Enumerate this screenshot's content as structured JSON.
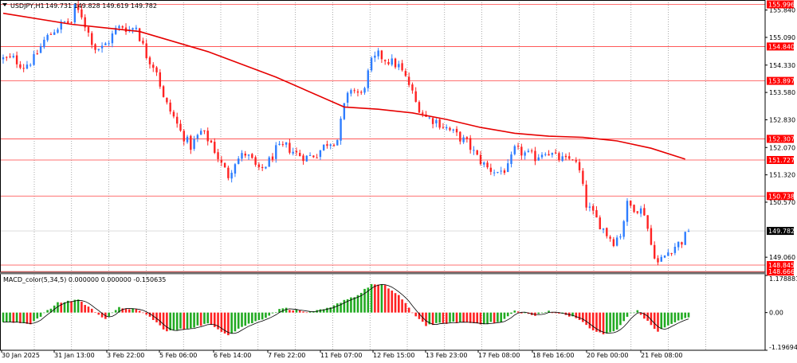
{
  "colors": {
    "background": "#ffffff",
    "axis": "#000000",
    "grid": "#000000",
    "bull": "#2e7dff",
    "bear": "#ff2222",
    "ma": "#e60000",
    "level_line": "#ff4040",
    "level_label_bg": "#ff0000",
    "level_label_text": "#ffffff",
    "price_label_bg": "#000000",
    "price_label_text": "#ffffff",
    "macd_pos_rising": "#22aa22",
    "macd_pos_falling": "#ff2222",
    "macd_signal": "#000000"
  },
  "main": {
    "title": "USDJPY,H1",
    "title_values": "149.731 149.828 149.619 149.782",
    "title_icon": "triangle-down-icon"
  },
  "chart_data": [
    {
      "type": "candlestick",
      "symbol": "USDJPY",
      "timeframe": "H1",
      "ylim": [
        148.67,
        156.05
      ],
      "y_ticks": [
        "155.840",
        "155.090",
        "154.330",
        "153.580",
        "152.830",
        "152.070",
        "151.320",
        "150.570",
        "149.060"
      ],
      "x_ticks": [
        "30 Jan 2025",
        "31 Jan 13:00",
        "3 Feb 22:00",
        "5 Feb 06:00",
        "6 Feb 14:00",
        "7 Feb 22:00",
        "11 Feb 07:00",
        "12 Feb 15:00",
        "13 Feb 23:00",
        "17 Feb 08:00",
        "18 Feb 16:00",
        "20 Feb 00:00",
        "21 Feb 08:00"
      ],
      "close_path": [
        [
          0,
          154.5
        ],
        [
          3,
          154.5
        ],
        [
          6,
          154.3
        ],
        [
          9,
          154.5
        ],
        [
          12,
          155.0
        ],
        [
          15,
          155.3
        ],
        [
          18,
          155.5
        ],
        [
          20,
          155.5
        ],
        [
          21,
          155.9
        ],
        [
          23,
          155.7
        ],
        [
          25,
          155.2
        ],
        [
          27,
          154.8
        ],
        [
          29,
          154.8
        ],
        [
          31,
          155.0
        ],
        [
          33,
          155.3
        ],
        [
          35,
          155.4
        ],
        [
          37,
          155.3
        ],
        [
          39,
          155.4
        ],
        [
          40,
          155.1
        ],
        [
          42,
          154.6
        ],
        [
          45,
          154.2
        ],
        [
          47,
          153.4
        ],
        [
          50,
          152.9
        ],
        [
          52,
          152.5
        ],
        [
          55,
          152.1
        ],
        [
          58,
          152.5
        ],
        [
          61,
          152.2
        ],
        [
          64,
          151.6
        ],
        [
          66,
          151.3
        ],
        [
          68,
          151.7
        ],
        [
          71,
          151.9
        ],
        [
          73,
          151.7
        ],
        [
          75,
          151.4
        ],
        [
          78,
          151.7
        ],
        [
          80,
          152.0
        ],
        [
          83,
          152.1
        ],
        [
          86,
          151.9
        ],
        [
          89,
          151.8
        ],
        [
          92,
          151.9
        ],
        [
          95,
          152.2
        ],
        [
          98,
          152.3
        ],
        [
          100,
          153.2
        ],
        [
          102,
          153.7
        ],
        [
          105,
          153.5
        ],
        [
          108,
          154.4
        ],
        [
          110,
          154.6
        ],
        [
          112,
          154.5
        ],
        [
          114,
          154.4
        ],
        [
          116,
          154.3
        ],
        [
          119,
          153.8
        ],
        [
          121,
          153.3
        ],
        [
          124,
          152.9
        ],
        [
          127,
          152.8
        ],
        [
          130,
          152.6
        ],
        [
          133,
          152.4
        ],
        [
          136,
          152.2
        ],
        [
          139,
          151.8
        ],
        [
          142,
          151.5
        ],
        [
          145,
          151.4
        ],
        [
          148,
          151.5
        ],
        [
          150,
          152.0
        ],
        [
          153,
          151.9
        ],
        [
          156,
          151.8
        ],
        [
          159,
          152.0
        ],
        [
          162,
          151.8
        ],
        [
          165,
          151.7
        ],
        [
          167,
          151.8
        ],
        [
          169,
          151.4
        ],
        [
          171,
          150.5
        ],
        [
          174,
          150.1
        ],
        [
          177,
          149.7
        ],
        [
          179,
          149.5
        ],
        [
          181,
          149.7
        ],
        [
          183,
          150.5
        ],
        [
          186,
          150.4
        ],
        [
          188,
          150.3
        ],
        [
          190,
          149.4
        ],
        [
          192,
          148.9
        ],
        [
          194,
          149.1
        ],
        [
          196,
          149.3
        ],
        [
          199,
          149.5
        ],
        [
          201,
          149.78
        ]
      ],
      "moving_average": [
        [
          0,
          155.75
        ],
        [
          20,
          155.45
        ],
        [
          40,
          155.25
        ],
        [
          60,
          154.7
        ],
        [
          80,
          154.0
        ],
        [
          100,
          153.18
        ],
        [
          110,
          153.12
        ],
        [
          120,
          153.02
        ],
        [
          130,
          152.84
        ],
        [
          140,
          152.62
        ],
        [
          150,
          152.46
        ],
        [
          160,
          152.38
        ],
        [
          170,
          152.35
        ],
        [
          180,
          152.25
        ],
        [
          190,
          152.05
        ],
        [
          200,
          151.75
        ]
      ],
      "levels": [
        155.996,
        154.84,
        153.897,
        152.307,
        151.727,
        150.738,
        148.845,
        148.666
      ],
      "level_labels": [
        "155.996",
        "154.840",
        "153.897",
        "152.307",
        "151.727",
        "150.738",
        "148.845",
        "148.666"
      ],
      "current_price": 149.782,
      "current_price_label": "149.782"
    },
    {
      "type": "bar",
      "title": "MACD_color(5,34,5) 0.000000 0.000000 -0.150635",
      "ylim": [
        -1.196945,
        1.178881
      ],
      "y_ticks": [
        "1.178881",
        "0.00",
        "-1.196945"
      ],
      "macd_path": [
        [
          0,
          -0.3
        ],
        [
          8,
          -0.35
        ],
        [
          16,
          0.3
        ],
        [
          22,
          0.42
        ],
        [
          26,
          0.1
        ],
        [
          30,
          -0.2
        ],
        [
          34,
          0.15
        ],
        [
          38,
          0.12
        ],
        [
          42,
          -0.05
        ],
        [
          48,
          -0.6
        ],
        [
          54,
          -0.5
        ],
        [
          60,
          -0.35
        ],
        [
          66,
          -0.7
        ],
        [
          70,
          -0.45
        ],
        [
          76,
          -0.2
        ],
        [
          82,
          0.15
        ],
        [
          90,
          0.0
        ],
        [
          96,
          0.15
        ],
        [
          100,
          0.4
        ],
        [
          104,
          0.55
        ],
        [
          108,
          0.9
        ],
        [
          112,
          0.85
        ],
        [
          116,
          0.55
        ],
        [
          120,
          0.0
        ],
        [
          124,
          -0.4
        ],
        [
          128,
          -0.35
        ],
        [
          134,
          -0.3
        ],
        [
          140,
          -0.35
        ],
        [
          146,
          -0.3
        ],
        [
          150,
          0.05
        ],
        [
          156,
          -0.1
        ],
        [
          160,
          0.05
        ],
        [
          164,
          -0.05
        ],
        [
          168,
          -0.15
        ],
        [
          172,
          -0.5
        ],
        [
          176,
          -0.7
        ],
        [
          180,
          -0.55
        ],
        [
          184,
          0.0
        ],
        [
          186,
          0.05
        ],
        [
          190,
          -0.4
        ],
        [
          192,
          -0.6
        ],
        [
          196,
          -0.35
        ],
        [
          201,
          -0.15
        ]
      ],
      "signal_lag": 3
    }
  ]
}
